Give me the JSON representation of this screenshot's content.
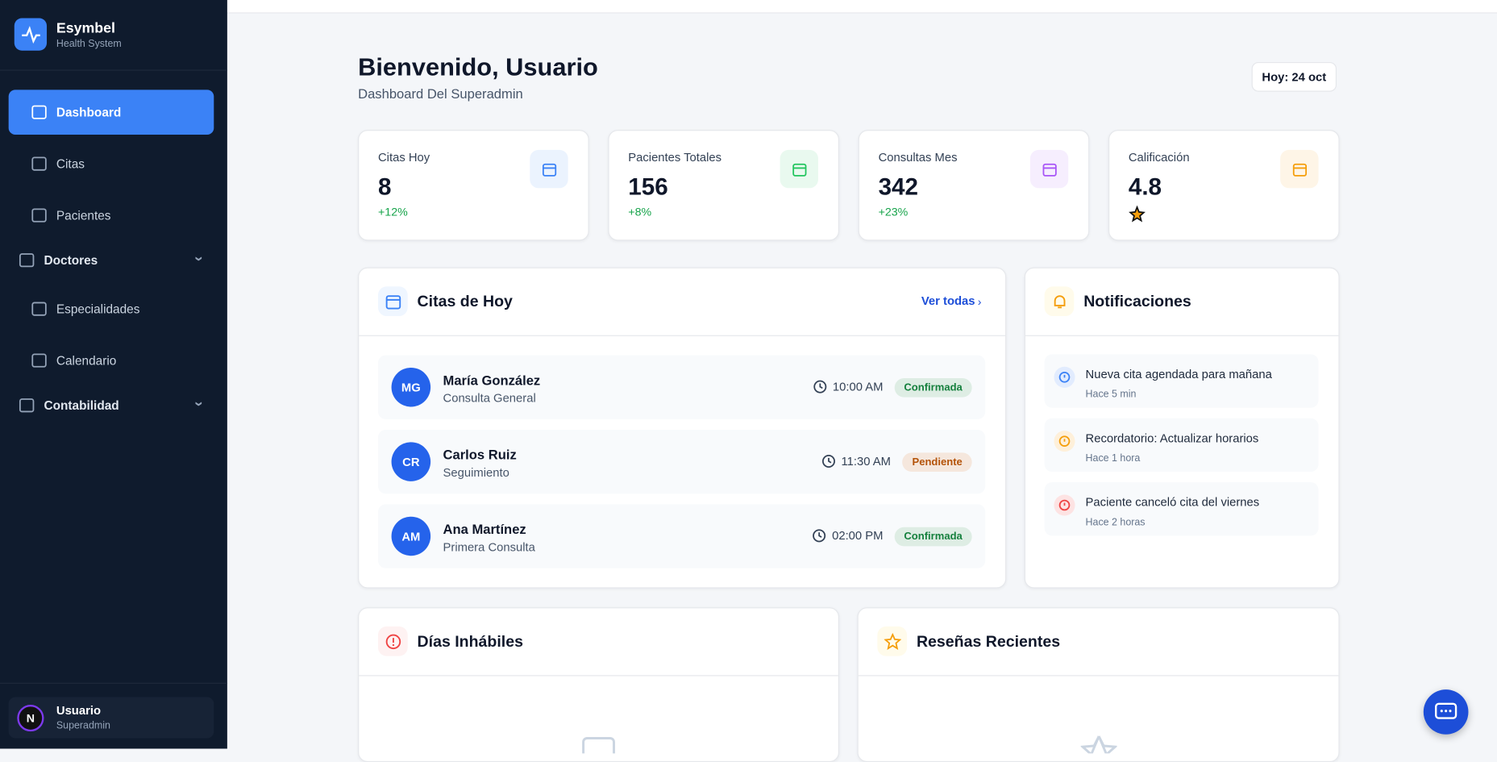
{
  "sidebar": {
    "brand": "Esymbel",
    "brand_sub": "Health System",
    "nav": [
      {
        "label": "Dashboard",
        "active": true
      },
      {
        "label": "Citas"
      },
      {
        "label": "Pacientes"
      },
      {
        "label": "Doctores",
        "group": true
      },
      {
        "label": "Especialidades"
      },
      {
        "label": "Calendario"
      },
      {
        "label": "Contabilidad",
        "group": true
      }
    ],
    "user": {
      "initial": "N",
      "name": "Usuario",
      "role": "Superadmin"
    }
  },
  "header": {
    "title": "Bienvenido, Usuario",
    "subtitle": "Dashboard Del Superadmin",
    "date": "Hoy: 24 oct"
  },
  "stats": [
    {
      "label": "Citas Hoy",
      "value": "8",
      "change": "+12%",
      "color": "#3b82f6"
    },
    {
      "label": "Pacientes Totales",
      "value": "156",
      "change": "+8%",
      "color": "#22c55e"
    },
    {
      "label": "Consultas Mes",
      "value": "342",
      "change": "+23%",
      "color": "#a855f7"
    },
    {
      "label": "Calificación",
      "value": "4.8",
      "color": "#f59e0b"
    }
  ],
  "appointments": {
    "title": "Citas de Hoy",
    "link": "Ver todas",
    "items": [
      {
        "initials": "MG",
        "name": "María González",
        "type": "Consulta General",
        "time": "10:00 AM",
        "status": "Confirmada",
        "color": "#15803d"
      },
      {
        "initials": "CR",
        "name": "Carlos Ruiz",
        "type": "Seguimiento",
        "time": "11:30 AM",
        "status": "Pendiente",
        "color": "#b45309"
      },
      {
        "initials": "AM",
        "name": "Ana Martínez",
        "type": "Primera Consulta",
        "time": "02:00 PM",
        "status": "Confirmada",
        "color": "#15803d"
      }
    ]
  },
  "notifications": {
    "title": "Notificaciones",
    "items": [
      {
        "text": "Nueva cita agendada para mañana",
        "time": "Hace 5 min",
        "color": "#3b82f6"
      },
      {
        "text": "Recordatorio: Actualizar horarios",
        "time": "Hace 1 hora",
        "color": "#f59e0b"
      },
      {
        "text": "Paciente canceló cita del viernes",
        "time": "Hace 2 horas",
        "color": "#ef4444"
      }
    ]
  },
  "holidays": {
    "title": "Días Inhábiles"
  },
  "reviews": {
    "title": "Reseñas Recientes"
  }
}
